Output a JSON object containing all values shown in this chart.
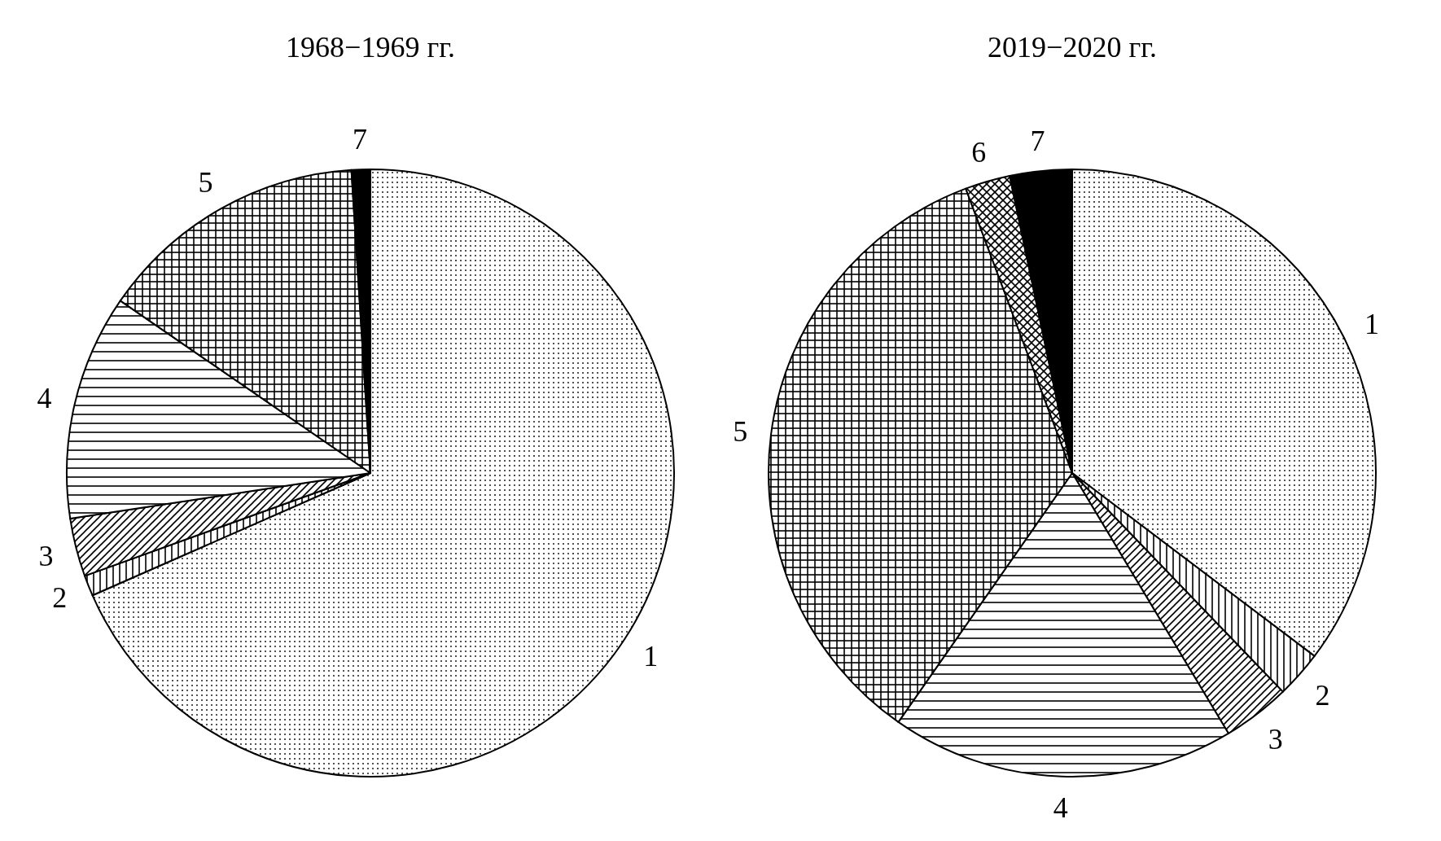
{
  "chart_data": [
    {
      "type": "pie",
      "title": "1968−1969 гг.",
      "categories": [
        "1",
        "2",
        "3",
        "4",
        "5",
        "7"
      ],
      "values": [
        68.4,
        1.1,
        3.1,
        12.0,
        14.4,
        1.0
      ],
      "colors": [
        "#000000",
        "#000000",
        "#000000",
        "#000000",
        "#000000",
        "#000000"
      ]
    },
    {
      "type": "pie",
      "title": "2019−2020 гг.",
      "categories": [
        "1",
        "2",
        "3",
        "4",
        "5",
        "6",
        "7"
      ],
      "values": [
        35.3,
        2.5,
        3.6,
        18.3,
        34.6,
        2.4,
        3.3
      ],
      "colors": [
        "#000000",
        "#000000",
        "#000000",
        "#000000",
        "#000000",
        "#000000",
        "#000000"
      ]
    }
  ]
}
